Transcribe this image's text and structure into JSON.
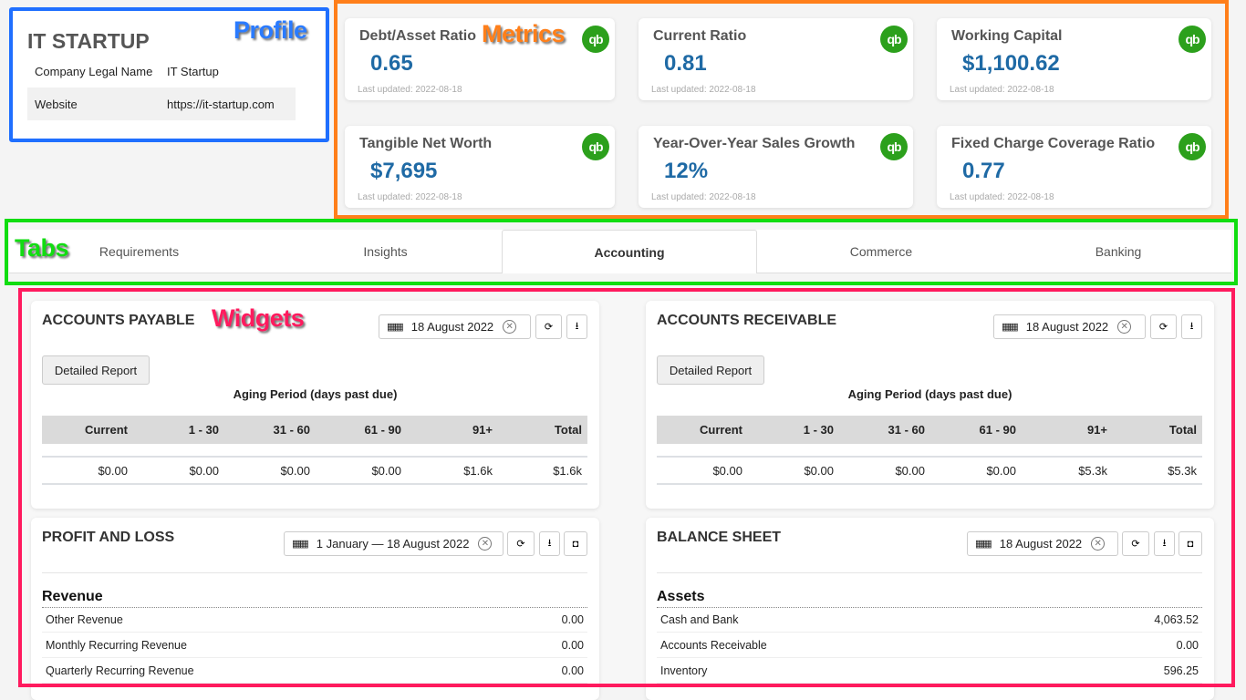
{
  "annotations": {
    "profile": "Profile",
    "metrics": "Metrics",
    "tabs": "Tabs",
    "widgets": "Widgets"
  },
  "profile": {
    "title": "IT STARTUP",
    "rows": [
      {
        "label": "Company Legal Name",
        "value": "IT Startup"
      },
      {
        "label": "Website",
        "value": "https://it-startup.com"
      }
    ]
  },
  "metrics": [
    {
      "title": "Debt/Asset Ratio",
      "value": "0.65",
      "updated": "Last updated: 2022-08-18",
      "icon": "qb"
    },
    {
      "title": "Current Ratio",
      "value": "0.81",
      "updated": "Last updated: 2022-08-18",
      "icon": "qb"
    },
    {
      "title": "Working Capital",
      "value": "$1,100.62",
      "updated": "Last updated: 2022-08-18",
      "icon": "qb"
    },
    {
      "title": "Tangible Net Worth",
      "value": "$7,695",
      "updated": "Last updated: 2022-08-18",
      "icon": "qb"
    },
    {
      "title": "Year-Over-Year Sales Growth",
      "value": "12%",
      "updated": "Last updated: 2022-08-18",
      "icon": "qb"
    },
    {
      "title": "Fixed Charge Coverage Ratio",
      "value": "0.77",
      "updated": "Last updated: 2022-08-18",
      "icon": "qb"
    }
  ],
  "tabs": [
    {
      "label": "Requirements"
    },
    {
      "label": "Insights"
    },
    {
      "label": "Accounting",
      "active": true
    },
    {
      "label": "Commerce"
    },
    {
      "label": "Banking"
    }
  ],
  "widgets": {
    "ap": {
      "title": "ACCOUNTS PAYABLE",
      "date": "18 August 2022",
      "button": "Detailed Report",
      "aging_label": "Aging Period (days past due)",
      "headers": [
        "Current",
        "1 - 30",
        "31 - 60",
        "61 - 90",
        "91+",
        "Total"
      ],
      "values": [
        "$0.00",
        "$0.00",
        "$0.00",
        "$0.00",
        "$1.6k",
        "$1.6k"
      ]
    },
    "ar": {
      "title": "ACCOUNTS RECEIVABLE",
      "date": "18 August 2022",
      "button": "Detailed Report",
      "aging_label": "Aging Period (days past due)",
      "headers": [
        "Current",
        "1 - 30",
        "31 - 60",
        "61 - 90",
        "91+",
        "Total"
      ],
      "values": [
        "$0.00",
        "$0.00",
        "$0.00",
        "$0.00",
        "$5.3k",
        "$5.3k"
      ]
    },
    "pl": {
      "title": "PROFIT AND LOSS",
      "date": "1 January — 18 August 2022",
      "section": "Revenue",
      "rows": [
        {
          "label": "Other Revenue",
          "value": "0.00"
        },
        {
          "label": "Monthly Recurring Revenue",
          "value": "0.00"
        },
        {
          "label": "Quarterly Recurring Revenue",
          "value": "0.00"
        }
      ]
    },
    "bs": {
      "title": "BALANCE SHEET",
      "date": "18 August 2022",
      "section": "Assets",
      "rows": [
        {
          "label": "Cash and Bank",
          "value": "4,063.52"
        },
        {
          "label": "Accounts Receivable",
          "value": "0.00"
        },
        {
          "label": "Inventory",
          "value": "596.25"
        }
      ]
    }
  }
}
